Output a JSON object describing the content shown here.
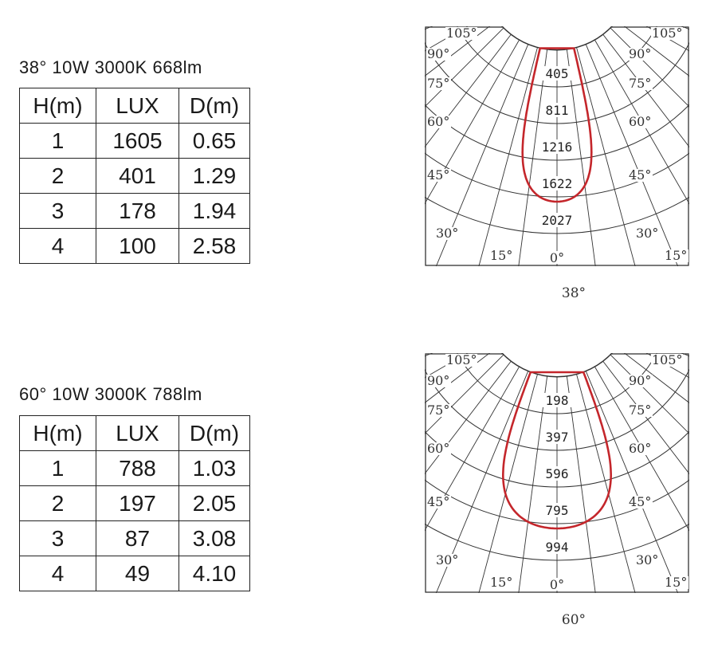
{
  "sections": [
    {
      "spec": "38°  10W  3000K 668lm",
      "headers": [
        "H(m)",
        "LUX",
        "D(m)"
      ],
      "rows": [
        [
          "1",
          "1605",
          "0.65"
        ],
        [
          "2",
          "401",
          "1.29"
        ],
        [
          "3",
          "178",
          "1.94"
        ],
        [
          "4",
          "100",
          "2.58"
        ]
      ],
      "polar": {
        "beam_label": "38°",
        "ring_values": [
          "405",
          "811",
          "1216",
          "1622",
          "2027"
        ],
        "angle_labels": {
          "a105": "105°",
          "a90": "90°",
          "a75": "75°",
          "a60": "60°",
          "a45": "45°",
          "a30": "30°",
          "a15": "15°",
          "a0": "0°"
        },
        "beam_angle_deg": 38,
        "curve_color": "#c4262b"
      }
    },
    {
      "spec": "60°  10W  3000K 788lm",
      "headers": [
        "H(m)",
        "LUX",
        "D(m)"
      ],
      "rows": [
        [
          "1",
          "788",
          "1.03"
        ],
        [
          "2",
          "197",
          "2.05"
        ],
        [
          "3",
          "87",
          "3.08"
        ],
        [
          "4",
          "49",
          "4.10"
        ]
      ],
      "polar": {
        "beam_label": "60°",
        "ring_values": [
          "198",
          "397",
          "596",
          "795",
          "994"
        ],
        "angle_labels": {
          "a105": "105°",
          "a90": "90°",
          "a75": "75°",
          "a60": "60°",
          "a45": "45°",
          "a30": "30°",
          "a15": "15°",
          "a0": "0°"
        },
        "beam_angle_deg": 60,
        "curve_color": "#c4262b"
      }
    }
  ]
}
